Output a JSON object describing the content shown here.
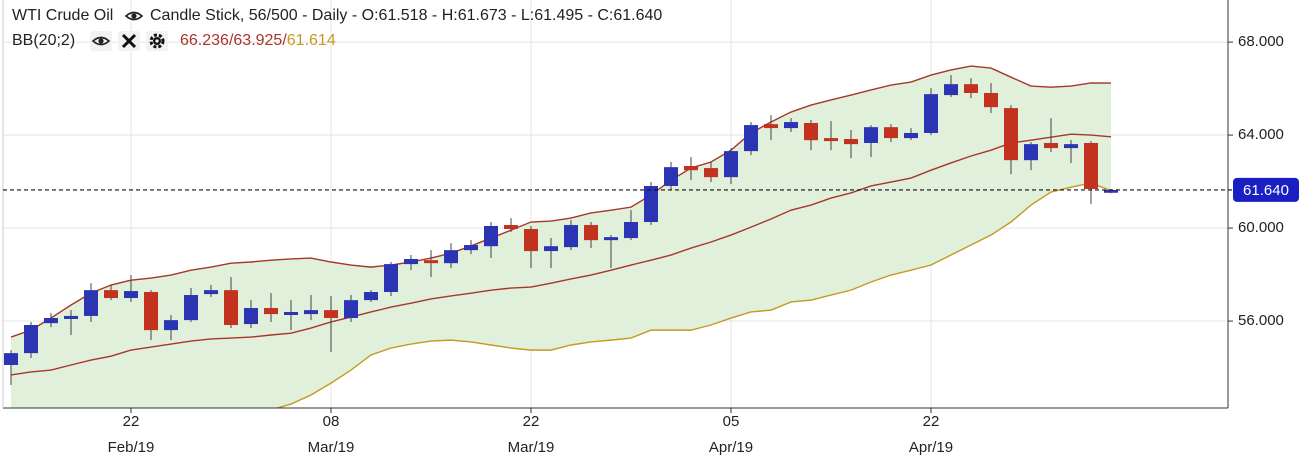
{
  "chart_data": {
    "type": "candlestick",
    "title": "WTI Crude Oil",
    "subtitle": "Candle Stick, 56/500 - Daily - O:61.518 - H:61.673 - L:61.495 - C:61.640",
    "indicator": {
      "name": "BB(20;2)",
      "upper_label": "66.236",
      "middle_label": "63.925",
      "lower_label": "61.614",
      "separator": "/"
    },
    "categories": [
      null,
      null,
      null,
      null,
      null,
      null,
      "22",
      null,
      null,
      null,
      null,
      null,
      null,
      null,
      null,
      null,
      "08",
      null,
      null,
      null,
      null,
      null,
      null,
      null,
      null,
      null,
      "22",
      null,
      null,
      null,
      null,
      null,
      null,
      null,
      null,
      null,
      "05",
      null,
      null,
      null,
      null,
      null,
      null,
      null,
      null,
      null,
      "22",
      null,
      null,
      null,
      null,
      null,
      null,
      null,
      null,
      null
    ],
    "category_months": [
      null,
      null,
      null,
      null,
      null,
      null,
      "Feb/19",
      null,
      null,
      null,
      null,
      null,
      null,
      null,
      null,
      null,
      "Mar/19",
      null,
      null,
      null,
      null,
      null,
      null,
      null,
      null,
      null,
      "Mar/19",
      null,
      null,
      null,
      null,
      null,
      null,
      null,
      null,
      null,
      "Apr/19",
      null,
      null,
      null,
      null,
      null,
      null,
      null,
      null,
      null,
      "Apr/19",
      null,
      null,
      null,
      null,
      null,
      null,
      null,
      null,
      null
    ],
    "open": [
      54.11,
      54.62,
      55.91,
      56.09,
      56.22,
      57.33,
      56.99,
      57.25,
      55.61,
      56.04,
      57.16,
      57.33,
      55.87,
      56.56,
      56.26,
      56.3,
      56.47,
      56.13,
      56.9,
      57.25,
      58.45,
      58.62,
      58.49,
      59.05,
      59.22,
      60.13,
      59.96,
      59.01,
      59.18,
      60.13,
      59.48,
      59.57,
      60.26,
      61.81,
      62.67,
      62.58,
      62.19,
      63.31,
      64.47,
      64.3,
      64.52,
      63.87,
      63.83,
      63.66,
      64.34,
      63.87,
      64.09,
      65.72,
      66.19,
      65.81,
      65.16,
      62.92,
      63.66,
      63.44,
      63.66,
      61.518
    ],
    "high": [
      54.75,
      55.96,
      56.34,
      56.47,
      57.63,
      57.55,
      57.98,
      57.33,
      56.26,
      57.42,
      57.55,
      57.89,
      56.9,
      57.2,
      56.9,
      57.12,
      57.08,
      57.12,
      57.33,
      58.54,
      58.84,
      59.05,
      59.35,
      59.48,
      60.26,
      60.43,
      60.09,
      59.57,
      60.34,
      60.26,
      59.7,
      60.77,
      61.98,
      62.84,
      63.05,
      62.84,
      63.44,
      64.56,
      64.86,
      64.73,
      64.65,
      64.6,
      64.22,
      64.43,
      64.47,
      64.3,
      66.02,
      66.58,
      66.45,
      66.24,
      65.29,
      63.7,
      64.73,
      63.78,
      63.74,
      61.673
    ],
    "low": [
      53.25,
      54.41,
      55.74,
      55.4,
      55.96,
      56.9,
      56.82,
      55.18,
      55.18,
      55.96,
      57.03,
      55.7,
      55.7,
      55.96,
      55.61,
      56.04,
      54.67,
      55.96,
      56.82,
      57.08,
      58.19,
      57.89,
      58.28,
      58.88,
      58.71,
      59.83,
      58.28,
      58.28,
      59.05,
      59.14,
      58.28,
      59.48,
      60.13,
      61.63,
      62.06,
      61.98,
      61.89,
      63.14,
      63.78,
      64.13,
      63.35,
      63.35,
      63.01,
      63.05,
      63.7,
      63.78,
      64.0,
      65.63,
      65.59,
      64.95,
      62.32,
      62.49,
      63.27,
      62.8,
      61.03,
      61.495
    ],
    "close": [
      54.62,
      55.83,
      56.13,
      56.22,
      57.33,
      56.99,
      57.29,
      55.61,
      56.04,
      57.12,
      57.33,
      55.83,
      56.56,
      56.3,
      56.39,
      56.47,
      56.13,
      56.9,
      57.25,
      58.45,
      58.67,
      58.49,
      59.05,
      59.27,
      60.09,
      59.96,
      59.01,
      59.22,
      60.13,
      59.48,
      59.61,
      60.26,
      61.81,
      62.62,
      62.49,
      62.19,
      63.31,
      64.43,
      64.3,
      64.56,
      63.78,
      63.74,
      63.61,
      64.34,
      63.87,
      64.09,
      65.76,
      66.19,
      65.81,
      65.2,
      62.92,
      63.61,
      63.44,
      63.61,
      61.68,
      61.64
    ],
    "up_color": "#2b35b3",
    "down_color": "#c3311f",
    "bands": {
      "fill": "#e0f0da",
      "upper": {
        "color": "#a8362a",
        "values": [
          55.31,
          55.61,
          56.13,
          56.69,
          57.2,
          57.55,
          57.76,
          57.85,
          57.98,
          58.19,
          58.32,
          58.49,
          58.54,
          58.62,
          58.67,
          58.71,
          58.54,
          58.41,
          58.32,
          58.41,
          58.54,
          58.71,
          58.92,
          59.23,
          59.57,
          59.91,
          60.26,
          60.3,
          60.43,
          60.65,
          60.77,
          60.9,
          61.42,
          62.06,
          62.58,
          62.84,
          63.35,
          64.09,
          64.56,
          64.99,
          65.29,
          65.51,
          65.72,
          65.94,
          66.15,
          66.28,
          66.58,
          66.8,
          66.97,
          66.88,
          66.49,
          66.11,
          66.06,
          66.11,
          66.24,
          66.236
        ]
      },
      "middle": {
        "color": "#a8362a",
        "values": [
          53.68,
          53.81,
          53.89,
          54.11,
          54.32,
          54.49,
          54.75,
          54.88,
          55.01,
          55.14,
          55.23,
          55.27,
          55.31,
          55.4,
          55.48,
          55.7,
          55.96,
          56.17,
          56.39,
          56.6,
          56.77,
          56.95,
          57.08,
          57.2,
          57.33,
          57.42,
          57.46,
          57.63,
          57.81,
          57.98,
          58.19,
          58.41,
          58.62,
          58.84,
          59.14,
          59.4,
          59.7,
          60.04,
          60.39,
          60.77,
          60.99,
          61.29,
          61.51,
          61.81,
          61.98,
          62.15,
          62.49,
          62.8,
          63.1,
          63.35,
          63.66,
          63.78,
          63.91,
          64.04,
          64.0,
          63.925
        ]
      },
      "lower": {
        "color": "#c49a22",
        "values": [
          52.05,
          52.01,
          51.65,
          51.53,
          51.44,
          51.43,
          51.74,
          51.91,
          52.04,
          52.09,
          52.14,
          52.05,
          52.08,
          52.18,
          52.43,
          52.82,
          53.33,
          53.89,
          54.54,
          54.84,
          55.01,
          55.14,
          55.18,
          55.1,
          54.97,
          54.84,
          54.75,
          54.75,
          54.97,
          55.1,
          55.18,
          55.27,
          55.61,
          55.61,
          55.61,
          55.83,
          56.13,
          56.39,
          56.47,
          56.82,
          56.9,
          57.12,
          57.33,
          57.68,
          57.98,
          58.19,
          58.41,
          58.84,
          59.27,
          59.7,
          60.26,
          60.99,
          61.55,
          61.76,
          61.94,
          61.614
        ]
      }
    },
    "last_price": {
      "value": 61.64,
      "label": "61.640"
    },
    "last_price_color": "#1a1fc4",
    "ylim": [
      52.26,
      69.81
    ],
    "yticks": [
      {
        "value": 56,
        "label": "56.000"
      },
      {
        "value": 60,
        "label": "60.000"
      },
      {
        "value": 64,
        "label": "64.000"
      },
      {
        "value": 68,
        "label": "68.000"
      }
    ],
    "grid": true
  }
}
